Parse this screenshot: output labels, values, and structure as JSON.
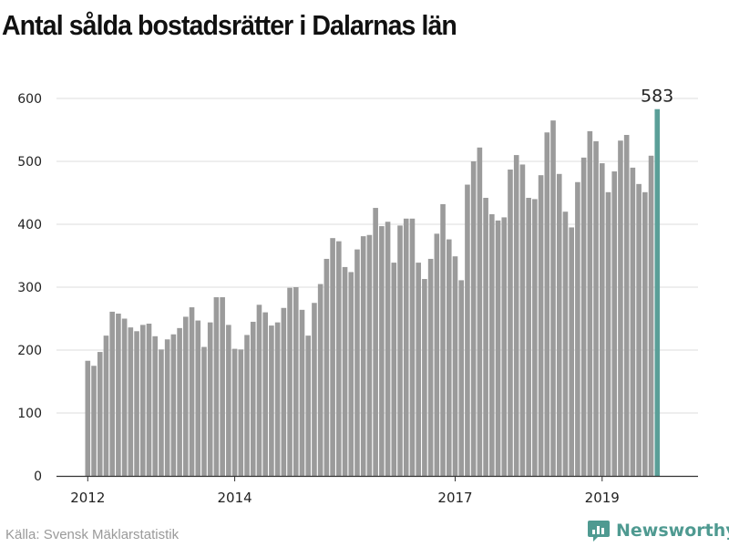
{
  "chart_data": {
    "type": "bar",
    "title": "Antal sålda bostadsrätter i Dalarnas län",
    "xlabel": "",
    "ylabel": "",
    "ylim": [
      0,
      600
    ],
    "yticks": [
      0,
      100,
      200,
      300,
      400,
      500,
      600
    ],
    "xticks": [
      {
        "label": "2012",
        "index": 0
      },
      {
        "label": "2014",
        "index": 24
      },
      {
        "label": "2017",
        "index": 60
      },
      {
        "label": "2019",
        "index": 84
      }
    ],
    "grid": true,
    "bar_color": "#9b9b9b",
    "highlight_color": "#5a9f98",
    "highlight_label": "583",
    "start": "2012-01",
    "series": [
      {
        "values": [
          183,
          175,
          197,
          223,
          261,
          258,
          250,
          236,
          230,
          240,
          242,
          222,
          201,
          217,
          225,
          235,
          253,
          268,
          247,
          205,
          244,
          284,
          284,
          240,
          202,
          201,
          224,
          245,
          272,
          260,
          239,
          244,
          267,
          299,
          300,
          264,
          223,
          275,
          305,
          345,
          378,
          373,
          332,
          324,
          360,
          381,
          383,
          426,
          397,
          404,
          339,
          398,
          409,
          409,
          339,
          313,
          345,
          385,
          432,
          376,
          349,
          311,
          463,
          500,
          522,
          442,
          416,
          406,
          411,
          487,
          510,
          495,
          442,
          440,
          478,
          546,
          565,
          480,
          420,
          395,
          467,
          506,
          548,
          532,
          497,
          451,
          484,
          533,
          542,
          490,
          464,
          451,
          509,
          583
        ]
      }
    ]
  },
  "source": "Källa: Svensk Mäklarstatistik",
  "brand": {
    "name": "Newsworthy",
    "icon": "newsworthy-logo-icon",
    "color": "#4f9a91"
  }
}
